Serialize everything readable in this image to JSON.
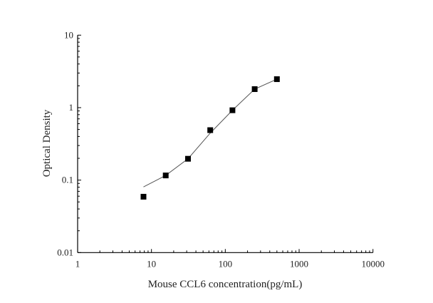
{
  "chart_data": {
    "type": "scatter",
    "title": "",
    "xlabel": "Mouse CCL6 concentration(pg/mL)",
    "ylabel": "Optical Density",
    "xscale": "log",
    "yscale": "log",
    "xlim": [
      1,
      10000
    ],
    "ylim": [
      0.01,
      10
    ],
    "xticks": [
      1,
      10,
      100,
      1000,
      10000
    ],
    "xtick_labels": [
      "1",
      "10",
      "100",
      "1000",
      "10000"
    ],
    "yticks": [
      0.01,
      0.1,
      1,
      10
    ],
    "ytick_labels": [
      "0.01",
      "0.1",
      "1",
      "10"
    ],
    "grid": false,
    "marker_color": "#000000",
    "line_color": "#555555",
    "series": [
      {
        "x": [
          7.8,
          15.6,
          31.25,
          62.5,
          125,
          250,
          500
        ],
        "y": [
          0.059,
          0.116,
          0.197,
          0.489,
          0.92,
          1.8,
          2.47
        ],
        "marker": "square"
      }
    ],
    "fit_curve": {
      "x": [
        7.8,
        15.6,
        31.25,
        62.5,
        125,
        250,
        500
      ],
      "y": [
        0.0805,
        0.116,
        0.197,
        0.445,
        0.92,
        1.8,
        2.47
      ]
    }
  }
}
